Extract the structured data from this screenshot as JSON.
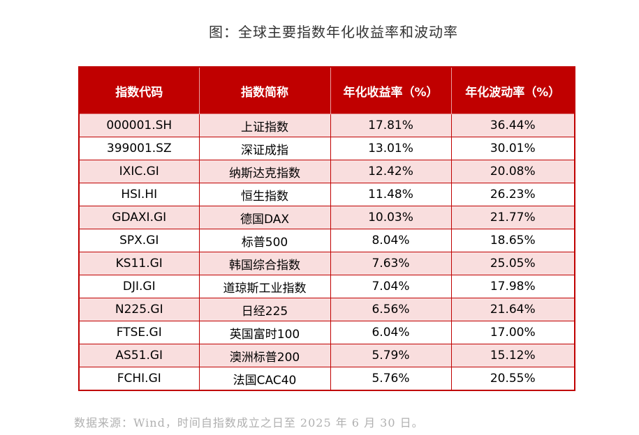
{
  "title": "图：全球主要指数年化收益率和波动率",
  "table": {
    "headers": [
      "指数代码",
      "指数简称",
      "年化收益率（%）",
      "年化波动率（%）"
    ],
    "rows": [
      [
        "000001.SH",
        "上证指数",
        "17.81%",
        "36.44%"
      ],
      [
        "399001.SZ",
        "深证成指",
        "13.01%",
        "30.01%"
      ],
      [
        "IXIC.GI",
        "纳斯达克指数",
        "12.42%",
        "20.08%"
      ],
      [
        "HSI.HI",
        "恒生指数",
        "11.48%",
        "26.23%"
      ],
      [
        "GDAXI.GI",
        "德国DAX",
        "10.03%",
        "21.77%"
      ],
      [
        "SPX.GI",
        "标普500",
        "8.04%",
        "18.65%"
      ],
      [
        "KS11.GI",
        "韩国综合指数",
        "7.63%",
        "25.05%"
      ],
      [
        "DJI.GI",
        "道琼斯工业指数",
        "7.04%",
        "17.98%"
      ],
      [
        "N225.GI",
        "日经225",
        "6.56%",
        "21.64%"
      ],
      [
        "FTSE.GI",
        "英国富时100",
        "6.04%",
        "17.00%"
      ],
      [
        "AS51.GI",
        "澳洲标普200",
        "5.79%",
        "15.12%"
      ],
      [
        "FCHI.GI",
        "法国CAC40",
        "5.76%",
        "20.55%"
      ]
    ]
  },
  "source": "数据来源：Wind，时间自指数成立之日至 2025 年 6 月 30 日。",
  "colors": {
    "header_bg": "#c00000",
    "header_text": "#ffffff",
    "stripe": "#f9dede",
    "border": "#c00000"
  }
}
